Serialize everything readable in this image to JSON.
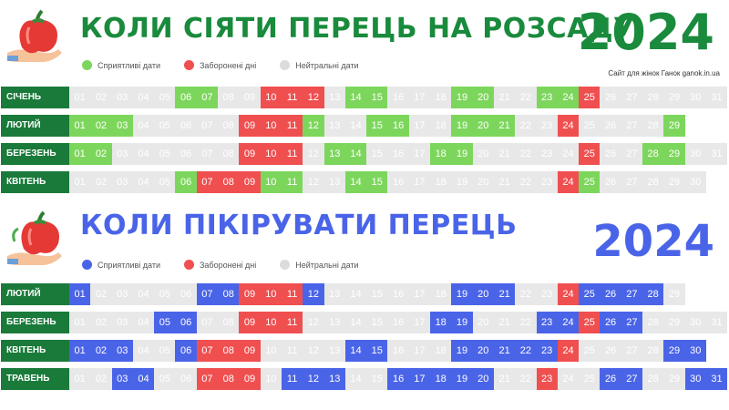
{
  "colors": {
    "green_title": "#1a8a3c",
    "blue_title": "#4a64e8",
    "favorable_green": "#7dd65c",
    "forbidden_red": "#f04f50",
    "neutral_gray": "#e8e8e8",
    "favorable_blue": "#4a64e8",
    "month_label_bg": "#1a7a3a"
  },
  "sowing": {
    "title": "КОЛИ СІЯТИ ПЕРЕЦЬ НА РОЗСАДУ",
    "year": "2024",
    "legend": {
      "favorable": "Сприятливі дати",
      "forbidden": "Заборонені дні",
      "neutral": "Нейтральні дати"
    },
    "site_credit": "Сайт для жінок Ганок ganok.in.ua",
    "months": [
      {
        "name": "СІЧЕНЬ",
        "days": 31,
        "favorable": [
          6,
          7,
          14,
          15,
          19,
          20,
          23,
          24
        ],
        "forbidden": [
          10,
          11,
          12,
          25
        ]
      },
      {
        "name": "ЛЮТИЙ",
        "days": 29,
        "favorable": [
          1,
          2,
          3,
          12,
          15,
          16,
          19,
          20,
          21,
          29
        ],
        "forbidden": [
          9,
          10,
          11,
          24
        ]
      },
      {
        "name": "БЕРЕЗЕНЬ",
        "days": 31,
        "favorable": [
          1,
          2,
          13,
          14,
          18,
          19,
          28,
          29
        ],
        "forbidden": [
          9,
          10,
          11,
          25
        ]
      },
      {
        "name": "КВІТЕНЬ",
        "days": 30,
        "favorable": [
          6,
          10,
          11,
          14,
          15,
          25
        ],
        "forbidden": [
          7,
          8,
          9,
          24
        ]
      }
    ]
  },
  "picking": {
    "title": "КОЛИ ПІКІРУВАТИ ПЕРЕЦЬ",
    "year": "2024",
    "legend": {
      "favorable": "Сприятливі дати",
      "forbidden": "Заборонені дні",
      "neutral": "Нейтральні дати"
    },
    "months": [
      {
        "name": "ЛЮТИЙ",
        "days": 29,
        "favorable": [
          1,
          7,
          8,
          12,
          19,
          20,
          21,
          25,
          26,
          27,
          28
        ],
        "forbidden": [
          9,
          10,
          11,
          24
        ]
      },
      {
        "name": "БЕРЕЗЕНЬ",
        "days": 31,
        "favorable": [
          5,
          6,
          18,
          19,
          23,
          24,
          26,
          27
        ],
        "forbidden": [
          9,
          10,
          11,
          25
        ]
      },
      {
        "name": "КВІТЕНЬ",
        "days": 30,
        "favorable": [
          1,
          2,
          3,
          6,
          14,
          15,
          19,
          20,
          21,
          22,
          23,
          29,
          30
        ],
        "forbidden": [
          7,
          8,
          9,
          24
        ]
      },
      {
        "name": "ТРАВЕНЬ",
        "days": 31,
        "favorable": [
          3,
          4,
          11,
          12,
          13,
          16,
          17,
          18,
          19,
          20,
          26,
          27,
          30,
          31
        ],
        "forbidden": [
          7,
          8,
          9,
          23
        ]
      }
    ]
  }
}
